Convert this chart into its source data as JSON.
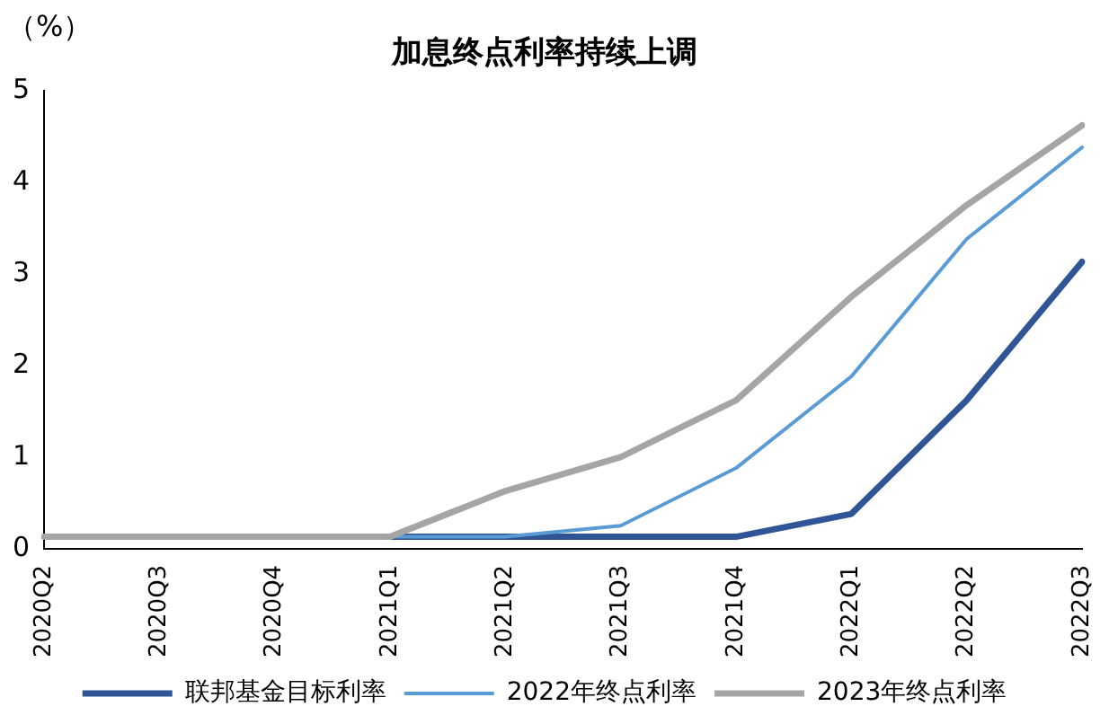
{
  "chart_data": {
    "type": "line",
    "title": "加息终点利率持续上调",
    "ylabel": "（%）",
    "categories": [
      "2020Q2",
      "2020Q3",
      "2020Q4",
      "2021Q1",
      "2021Q2",
      "2021Q3",
      "2021Q4",
      "2022Q1",
      "2022Q2",
      "2022Q3"
    ],
    "series": [
      {
        "name": "联邦基金目标利率",
        "color": "#2f5597",
        "values": [
          null,
          null,
          null,
          0.13,
          0.13,
          0.13,
          0.13,
          0.38,
          1.62,
          3.13
        ]
      },
      {
        "name": "2022年终点利率",
        "color": "#5b9bd5",
        "values": [
          null,
          null,
          null,
          0.13,
          0.13,
          0.25,
          0.88,
          1.88,
          3.38,
          4.38
        ]
      },
      {
        "name": "2023年终点利率",
        "color": "#a5a5a5",
        "values": [
          0.13,
          0.13,
          0.13,
          0.13,
          0.63,
          1.0,
          1.62,
          2.75,
          3.75,
          4.62
        ]
      }
    ],
    "ylim": [
      0,
      5
    ],
    "yticks": [
      0,
      1,
      2,
      3,
      4,
      5
    ],
    "grid": false,
    "legend": "bottom",
    "marker": "none",
    "line_style": "solid"
  }
}
